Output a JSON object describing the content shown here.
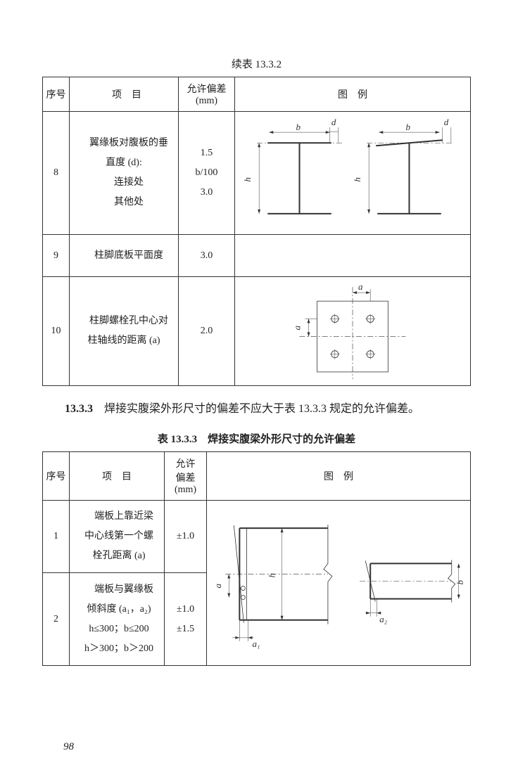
{
  "caption1": "续表 13.3.2",
  "table1": {
    "headers": {
      "seq": "序号",
      "item": "项　目",
      "tol": "允许偏差\n(mm)",
      "diag": "图　例"
    },
    "rows": [
      {
        "seq": "8",
        "item_lines": [
          "　翼缘板对腹板的垂",
          "直度 (d):",
          "　连接处",
          "　其他处"
        ],
        "tol_lines": [
          "",
          "1.5",
          "b/100",
          "3.0"
        ]
      },
      {
        "seq": "9",
        "item": "　柱脚底板平面度",
        "tol": "3.0"
      },
      {
        "seq": "10",
        "item_lines": [
          "　柱脚螺栓孔中心对",
          "柱轴线的距离 (a)"
        ],
        "tol": "2.0"
      }
    ]
  },
  "para": {
    "num": "13.3.3",
    "text": "　焊接实腹梁外形尺寸的偏差不应大于表 13.3.3 规定的允许偏差。"
  },
  "caption2": "表 13.3.3　焊接实腹梁外形尺寸的允许偏差",
  "table2": {
    "headers": {
      "seq": "序号",
      "item": "项　目",
      "tol": "允许\n偏差\n(mm)",
      "diag": "图　例"
    },
    "rows": [
      {
        "seq": "1",
        "item_lines": [
          "　端板上靠近梁",
          "中心线第一个螺",
          "栓孔距离 (a)"
        ],
        "tol": "±1.0"
      },
      {
        "seq": "2",
        "item_lines": [
          "　端板与翼缘板",
          "倾斜度 (a₁，a₂)",
          "h≤300；b≤200",
          "h＞300；b＞200"
        ],
        "tol_lines": [
          "",
          "",
          "±1.0",
          "±1.5"
        ]
      }
    ]
  },
  "pagenum": "98",
  "labels": {
    "b": "b",
    "d": "d",
    "h": "h",
    "a": "a",
    "a1": "a₁",
    "a2": "a₂"
  },
  "colors": {
    "ink": "#333333",
    "bg": "#ffffff"
  }
}
